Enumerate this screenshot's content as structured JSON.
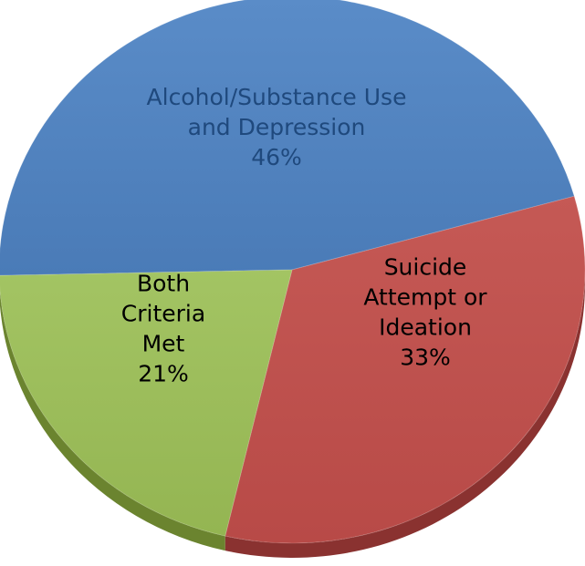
{
  "chart_data": {
    "type": "pie",
    "title": "",
    "slices": [
      {
        "label_lines": [
          "Alcohol/Substance Use",
          "and Depression"
        ],
        "value_label": "46%",
        "value": 46,
        "color": "#4F81BD",
        "text_color": "#1F497D"
      },
      {
        "label_lines": [
          "Suicide",
          "Attempt or",
          "Ideation"
        ],
        "value_label": "33%",
        "value": 33,
        "color": "#C0504D",
        "text_color": "#000000"
      },
      {
        "label_lines": [
          "Both",
          "Criteria",
          "Met"
        ],
        "value_label": "21%",
        "value": 21,
        "color": "#9BBB59",
        "text_color": "#000000"
      }
    ],
    "start_angle_deg": 180,
    "direction": "clockwise",
    "style": "3d"
  }
}
